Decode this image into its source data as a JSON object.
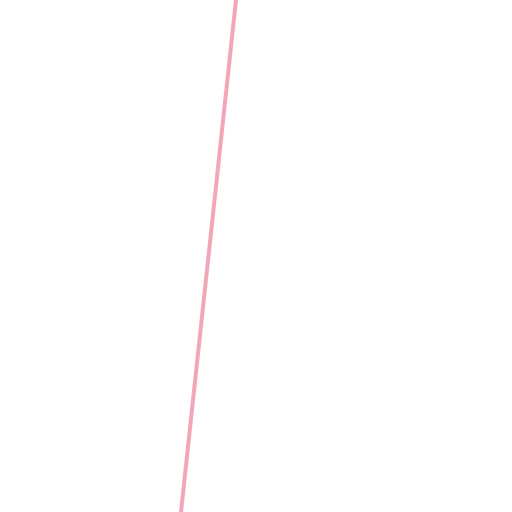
{
  "canvas": {
    "background_color": "#ffffff"
  },
  "stroke": {
    "shape": "straight line",
    "color": "#f2a7b8"
  }
}
